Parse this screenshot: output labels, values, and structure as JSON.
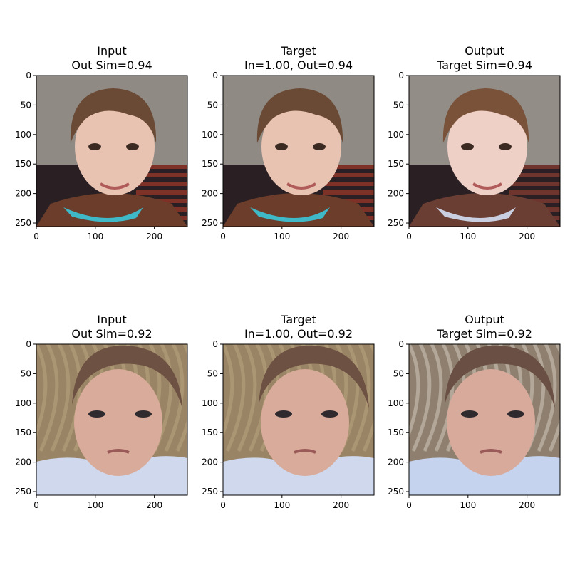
{
  "chart_data": [
    {
      "type": "image",
      "title_lines": [
        "Input",
        "Out Sim=0.94"
      ],
      "x_ticks": [
        0,
        100,
        200
      ],
      "y_ticks": [
        0,
        50,
        100,
        150,
        200,
        250
      ],
      "xlim": [
        0,
        256
      ],
      "ylim": [
        256,
        0
      ],
      "image": "child-boy-photo",
      "palette": {
        "bg": "#8f8a84",
        "face": "#e8c3b2",
        "hair": "#6b4a35",
        "shirt": "#6b3d2a",
        "collar": "#3fb8c8",
        "stripe": "#a33a2a"
      }
    },
    {
      "type": "image",
      "title_lines": [
        "Target",
        "In=1.00, Out=0.94"
      ],
      "x_ticks": [
        0,
        100,
        200
      ],
      "y_ticks": [
        0,
        50,
        100,
        150,
        200,
        250
      ],
      "xlim": [
        0,
        256
      ],
      "ylim": [
        256,
        0
      ],
      "image": "child-boy-photo",
      "palette": {
        "bg": "#8f8a84",
        "face": "#e8c3b2",
        "hair": "#6b4a35",
        "shirt": "#6b3d2a",
        "collar": "#3fb8c8",
        "stripe": "#a33a2a"
      }
    },
    {
      "type": "image",
      "title_lines": [
        "Output",
        "Target Sim=0.94"
      ],
      "x_ticks": [
        0,
        100,
        200
      ],
      "y_ticks": [
        0,
        50,
        100,
        150,
        200,
        250
      ],
      "xlim": [
        0,
        256
      ],
      "ylim": [
        256,
        0
      ],
      "image": "child-boy-photo-reconstructed",
      "palette": {
        "bg": "#938d87",
        "face": "#efd0c6",
        "hair": "#7a523a",
        "shirt": "#6a3e33",
        "collar": "#c9cfe0",
        "stripe": "#8c3f33"
      }
    },
    {
      "type": "image",
      "title_lines": [
        "Input",
        "Out Sim=0.92"
      ],
      "x_ticks": [
        0,
        100,
        200
      ],
      "y_ticks": [
        0,
        50,
        100,
        150,
        200,
        250
      ],
      "xlim": [
        0,
        256
      ],
      "ylim": [
        256,
        0
      ],
      "image": "toddler-photo",
      "palette": {
        "bg": "#9a8466",
        "face": "#d9ab9a",
        "hair": "#6d5142",
        "shirt": "#cfd8ec",
        "collar": "#e7ebf5",
        "stripe": "#b8a27c"
      }
    },
    {
      "type": "image",
      "title_lines": [
        "Target",
        "In=1.00, Out=0.92"
      ],
      "x_ticks": [
        0,
        100,
        200
      ],
      "y_ticks": [
        0,
        50,
        100,
        150,
        200,
        250
      ],
      "xlim": [
        0,
        256
      ],
      "ylim": [
        256,
        0
      ],
      "image": "toddler-photo",
      "palette": {
        "bg": "#9a8466",
        "face": "#d9ab9a",
        "hair": "#6d5142",
        "shirt": "#cfd8ec",
        "collar": "#e7ebf5",
        "stripe": "#b8a27c"
      }
    },
    {
      "type": "image",
      "title_lines": [
        "Output",
        "Target Sim=0.92"
      ],
      "x_ticks": [
        0,
        100,
        200
      ],
      "y_ticks": [
        0,
        50,
        100,
        150,
        200,
        250
      ],
      "xlim": [
        0,
        256
      ],
      "ylim": [
        256,
        0
      ],
      "image": "toddler-photo-reconstructed",
      "palette": {
        "bg": "#8f7f6e",
        "face": "#d7aa9c",
        "hair": "#6a5044",
        "shirt": "#c6d3ee",
        "collar": "#e2e8f4",
        "stripe": "#c9c1b6"
      }
    }
  ]
}
